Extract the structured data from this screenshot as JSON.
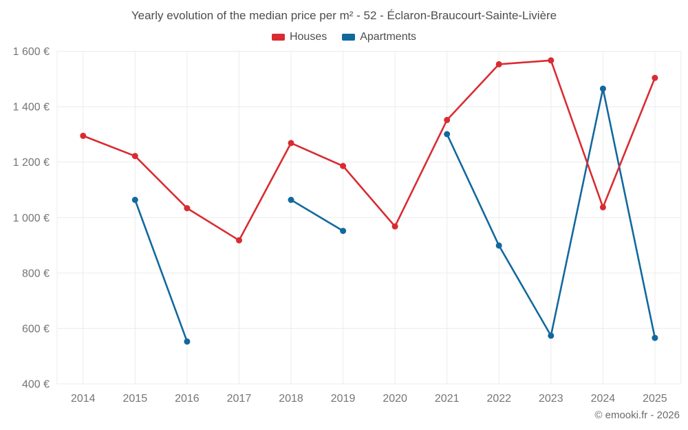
{
  "header": {
    "title": "Yearly evolution of the median price per m² - 52 - Éclaron-Braucourt-Sainte-Livière"
  },
  "legend": {
    "items": [
      {
        "label": "Houses",
        "color": "#d92b31"
      },
      {
        "label": "Apartments",
        "color": "#11689e"
      }
    ]
  },
  "footer": {
    "text": "© emooki.fr - 2026"
  },
  "colors": {
    "houses": "#d92b31",
    "apartments": "#11689e",
    "grid": "#ebebeb",
    "axis_text": "#757575",
    "title_text": "#4d4d4d",
    "background": "#ffffff"
  },
  "chart_data": {
    "type": "line",
    "title": "Yearly evolution of the median price per m² - 52 - Éclaron-Braucourt-Sainte-Livière",
    "categories": [
      "2014",
      "2015",
      "2016",
      "2017",
      "2018",
      "2019",
      "2020",
      "2021",
      "2022",
      "2023",
      "2024",
      "2025"
    ],
    "series": [
      {
        "name": "Houses",
        "color": "#d92b31",
        "values": [
          1295,
          1222,
          1034,
          918,
          1269,
          1186,
          968,
          1352,
          1553,
          1567,
          1037,
          1504
        ]
      },
      {
        "name": "Apartments",
        "color": "#11689e",
        "values": [
          null,
          1064,
          553,
          null,
          1064,
          952,
          null,
          1301,
          899,
          574,
          1465,
          566
        ]
      }
    ],
    "xlabel": "",
    "ylabel": "",
    "unit": "€",
    "ylim": [
      400,
      1600
    ],
    "yticks": [
      400,
      600,
      800,
      1000,
      1200,
      1400,
      1600
    ],
    "ytick_labels": [
      "400 €",
      "600 €",
      "800 €",
      "1 000 €",
      "1 200 €",
      "1 400 €",
      "1 600 €"
    ],
    "grid": true,
    "legend_position": "top"
  }
}
